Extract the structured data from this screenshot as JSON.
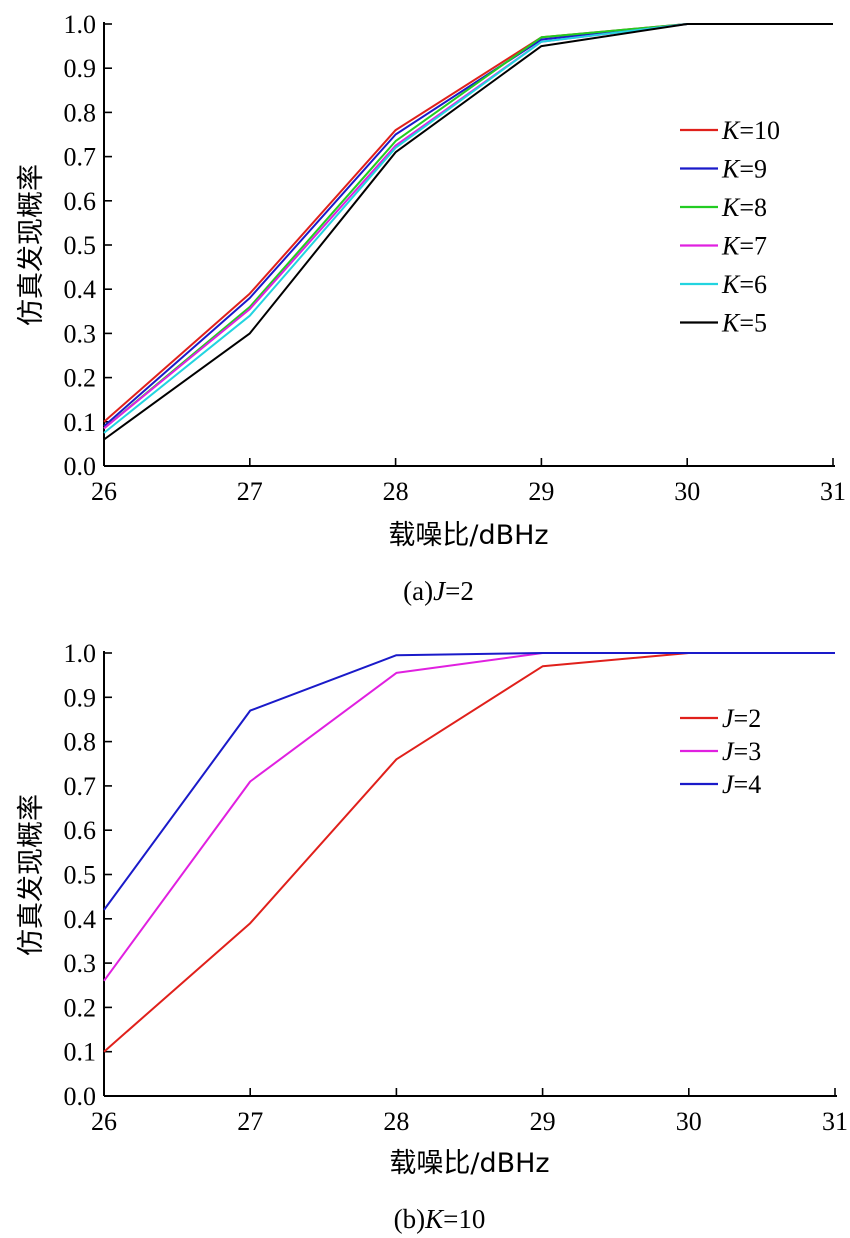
{
  "chart_data": [
    {
      "type": "line",
      "caption_prefix": "(a)",
      "caption_var": "J",
      "caption_value": "=2",
      "xlabel": "载噪比/dBHz",
      "ylabel": "仿真发现概率",
      "x": [
        26,
        27,
        28,
        29,
        30,
        31
      ],
      "xlim": [
        26,
        31
      ],
      "ylim": [
        0,
        1
      ],
      "x_ticks": [
        "26",
        "27",
        "28",
        "29",
        "30",
        "31"
      ],
      "y_ticks": [
        "0.0",
        "0.1",
        "0.2",
        "0.3",
        "0.4",
        "0.5",
        "0.6",
        "0.7",
        "0.8",
        "0.9",
        "1.0"
      ],
      "grid": false,
      "legend_position": "right",
      "series": [
        {
          "name": "K",
          "suffix": "=10",
          "color": "#e0201b",
          "values": [
            0.1,
            0.39,
            0.76,
            0.97,
            1.0,
            1.0
          ]
        },
        {
          "name": "K",
          "suffix": "=9",
          "color": "#1a1ac9",
          "values": [
            0.09,
            0.38,
            0.75,
            0.965,
            1.0,
            1.0
          ]
        },
        {
          "name": "K",
          "suffix": "=8",
          "color": "#22cc22",
          "values": [
            0.085,
            0.36,
            0.735,
            0.97,
            1.0,
            1.0
          ]
        },
        {
          "name": "K",
          "suffix": "=7",
          "color": "#e020e0",
          "values": [
            0.085,
            0.355,
            0.725,
            0.96,
            1.0,
            1.0
          ]
        },
        {
          "name": "K",
          "suffix": "=6",
          "color": "#22d4e0",
          "values": [
            0.075,
            0.34,
            0.72,
            0.96,
            1.0,
            1.0
          ]
        },
        {
          "name": "K",
          "suffix": "=5",
          "color": "#000000",
          "values": [
            0.06,
            0.3,
            0.71,
            0.95,
            1.0,
            1.0
          ]
        }
      ]
    },
    {
      "type": "line",
      "caption_prefix": "(b)",
      "caption_var": "K",
      "caption_value": "=10",
      "xlabel": "载噪比/dBHz",
      "ylabel": "仿真发现概率",
      "x": [
        26,
        27,
        28,
        29,
        30,
        31
      ],
      "xlim": [
        26,
        31
      ],
      "ylim": [
        0,
        1
      ],
      "x_ticks": [
        "26",
        "27",
        "28",
        "29",
        "30",
        "31"
      ],
      "y_ticks": [
        "0.0",
        "0.1",
        "0.2",
        "0.3",
        "0.4",
        "0.5",
        "0.6",
        "0.7",
        "0.8",
        "0.9",
        "1.0"
      ],
      "grid": false,
      "legend_position": "right",
      "series": [
        {
          "name": "J",
          "suffix": "=2",
          "color": "#e0201b",
          "values": [
            0.1,
            0.39,
            0.76,
            0.97,
            1.0,
            1.0
          ]
        },
        {
          "name": "J",
          "suffix": "=3",
          "color": "#e020e0",
          "values": [
            0.26,
            0.71,
            0.955,
            1.0,
            1.0,
            1.0
          ]
        },
        {
          "name": "J",
          "suffix": "=4",
          "color": "#1a1ac9",
          "values": [
            0.42,
            0.87,
            0.995,
            1.0,
            1.0,
            1.0
          ]
        }
      ]
    }
  ]
}
